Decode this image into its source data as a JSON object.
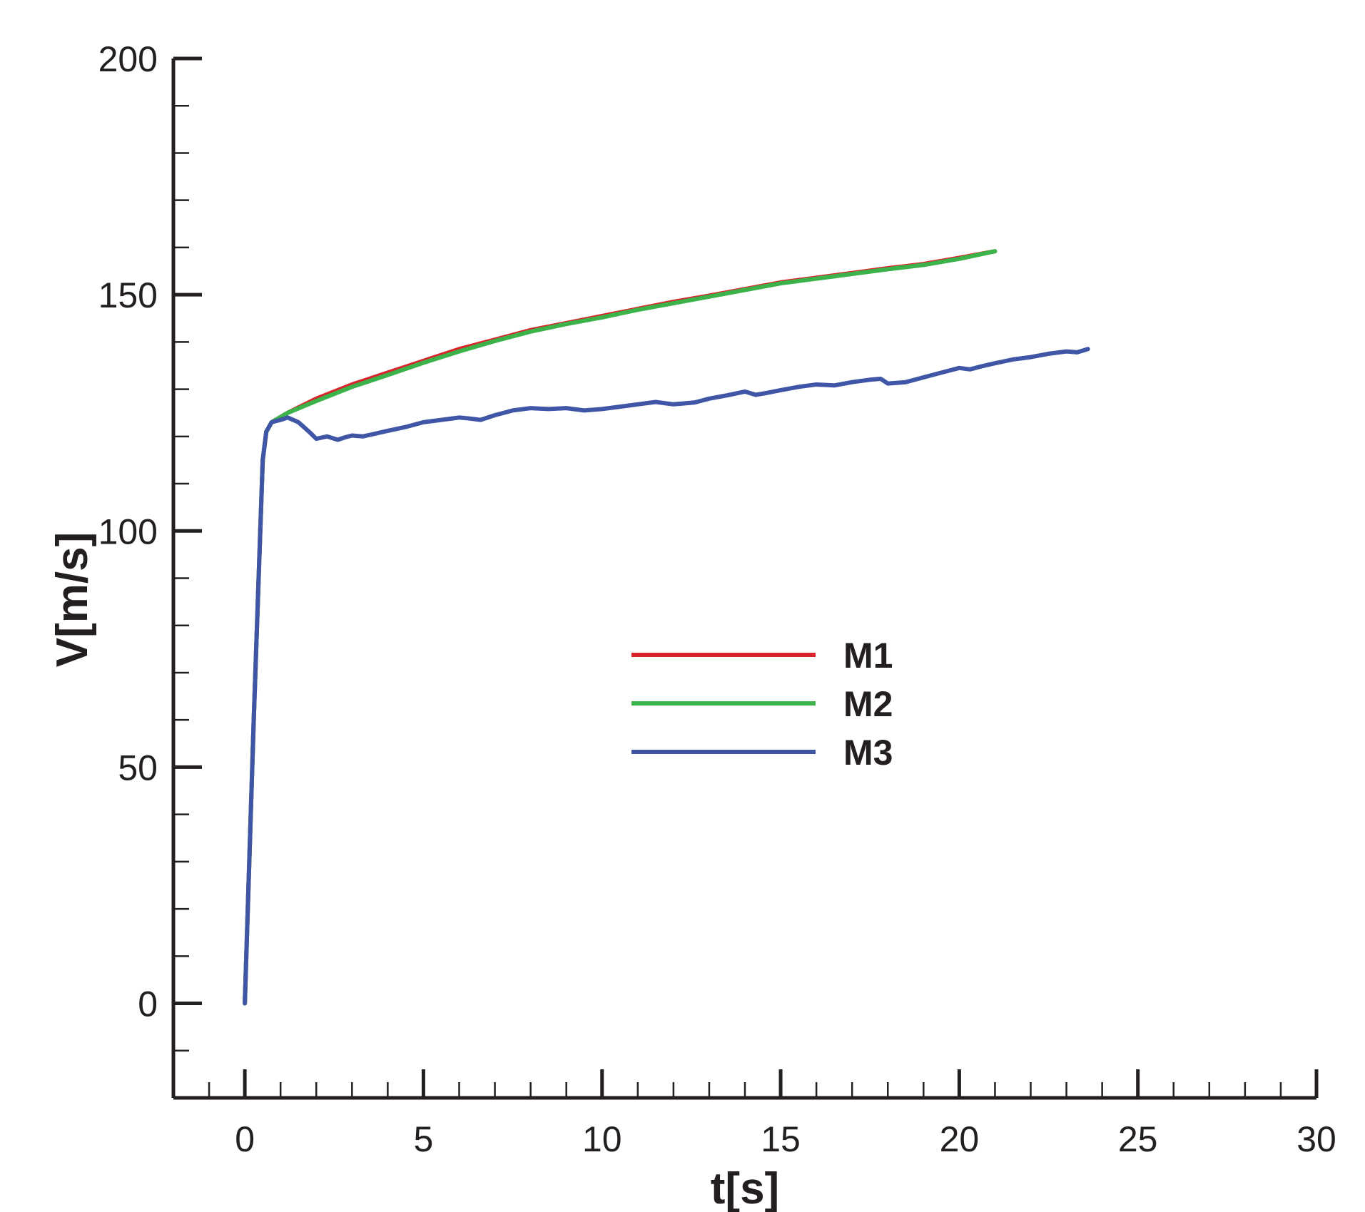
{
  "chart_data": {
    "type": "line",
    "xlabel": "t[s]",
    "ylabel": "V[m/s]",
    "xlim": [
      -2,
      30
    ],
    "ylim": [
      -20,
      200
    ],
    "x_ticks": [
      0,
      5,
      10,
      15,
      20,
      25,
      30
    ],
    "x_tick_labels": [
      "0",
      "5",
      "10",
      "15",
      "20",
      "25",
      "30"
    ],
    "x_minor_step": 1,
    "y_ticks": [
      0,
      50,
      100,
      150,
      200
    ],
    "y_tick_labels": [
      "0",
      "50",
      "100",
      "150",
      "200"
    ],
    "y_minor_step": 10,
    "grid": false,
    "legend_position": "center",
    "series": [
      {
        "name": "M1",
        "color": "#d7262b",
        "x": [
          0,
          0.25,
          0.5,
          0.6,
          0.75,
          1.2,
          2.0,
          2.5,
          3.0,
          4.0,
          5.0,
          6.0,
          7.0,
          8.0,
          9.0,
          10.0,
          11.0,
          12.0,
          13.0,
          14.0,
          15.0,
          16.0,
          17.0,
          18.0,
          19.0,
          20.0,
          21.0
        ],
        "y": [
          0,
          60,
          115,
          121,
          123,
          125,
          128,
          129.5,
          131,
          133.5,
          136,
          138.5,
          140.5,
          142.5,
          144,
          145.5,
          147,
          148.5,
          149.8,
          151.2,
          152.6,
          153.6,
          154.6,
          155.6,
          156.5,
          157.8,
          159.2
        ]
      },
      {
        "name": "M2",
        "color": "#3cb34a",
        "x": [
          0,
          0.25,
          0.5,
          0.6,
          0.75,
          1.2,
          2.0,
          2.5,
          3.0,
          4.0,
          5.0,
          6.0,
          7.0,
          8.0,
          9.0,
          10.0,
          11.0,
          12.0,
          13.0,
          14.0,
          15.0,
          16.0,
          17.0,
          18.0,
          19.0,
          20.0,
          21.0
        ],
        "y": [
          0,
          60,
          115,
          121,
          123,
          125,
          127.5,
          129,
          130.5,
          133,
          135.6,
          138,
          140.2,
          142.2,
          143.8,
          145.2,
          146.8,
          148.2,
          149.6,
          151,
          152.4,
          153.4,
          154.4,
          155.4,
          156.3,
          157.6,
          159.2
        ]
      },
      {
        "name": "M3",
        "color": "#3f56a6",
        "x": [
          0,
          0.25,
          0.5,
          0.6,
          0.75,
          1.0,
          1.2,
          1.5,
          1.8,
          2.0,
          2.3,
          2.6,
          2.8,
          3.0,
          3.3,
          3.6,
          4.0,
          4.5,
          5.0,
          5.5,
          6.0,
          6.3,
          6.6,
          7.0,
          7.5,
          8.0,
          8.5,
          9.0,
          9.5,
          10.0,
          10.5,
          11.0,
          11.5,
          12.0,
          12.3,
          12.6,
          13.0,
          13.5,
          14.0,
          14.3,
          14.6,
          15.0,
          15.5,
          16.0,
          16.5,
          17.0,
          17.5,
          17.8,
          18.0,
          18.5,
          19.0,
          19.5,
          20.0,
          20.3,
          20.6,
          21.0,
          21.5,
          22.0,
          22.5,
          23.0,
          23.3,
          23.6
        ],
        "y": [
          0,
          60,
          115,
          121,
          123,
          123.5,
          124,
          123,
          121,
          119.5,
          120,
          119.3,
          119.8,
          120.2,
          120,
          120.5,
          121.2,
          122,
          123,
          123.5,
          124,
          123.8,
          123.5,
          124.5,
          125.5,
          126,
          125.8,
          126,
          125.5,
          125.8,
          126.3,
          126.8,
          127.3,
          126.8,
          127,
          127.2,
          128,
          128.7,
          129.5,
          128.8,
          129.2,
          129.8,
          130.5,
          131,
          130.8,
          131.5,
          132,
          132.2,
          131.2,
          131.5,
          132.5,
          133.5,
          134.5,
          134.2,
          134.8,
          135.5,
          136.3,
          136.8,
          137.5,
          138,
          137.8,
          138.5
        ]
      }
    ]
  }
}
